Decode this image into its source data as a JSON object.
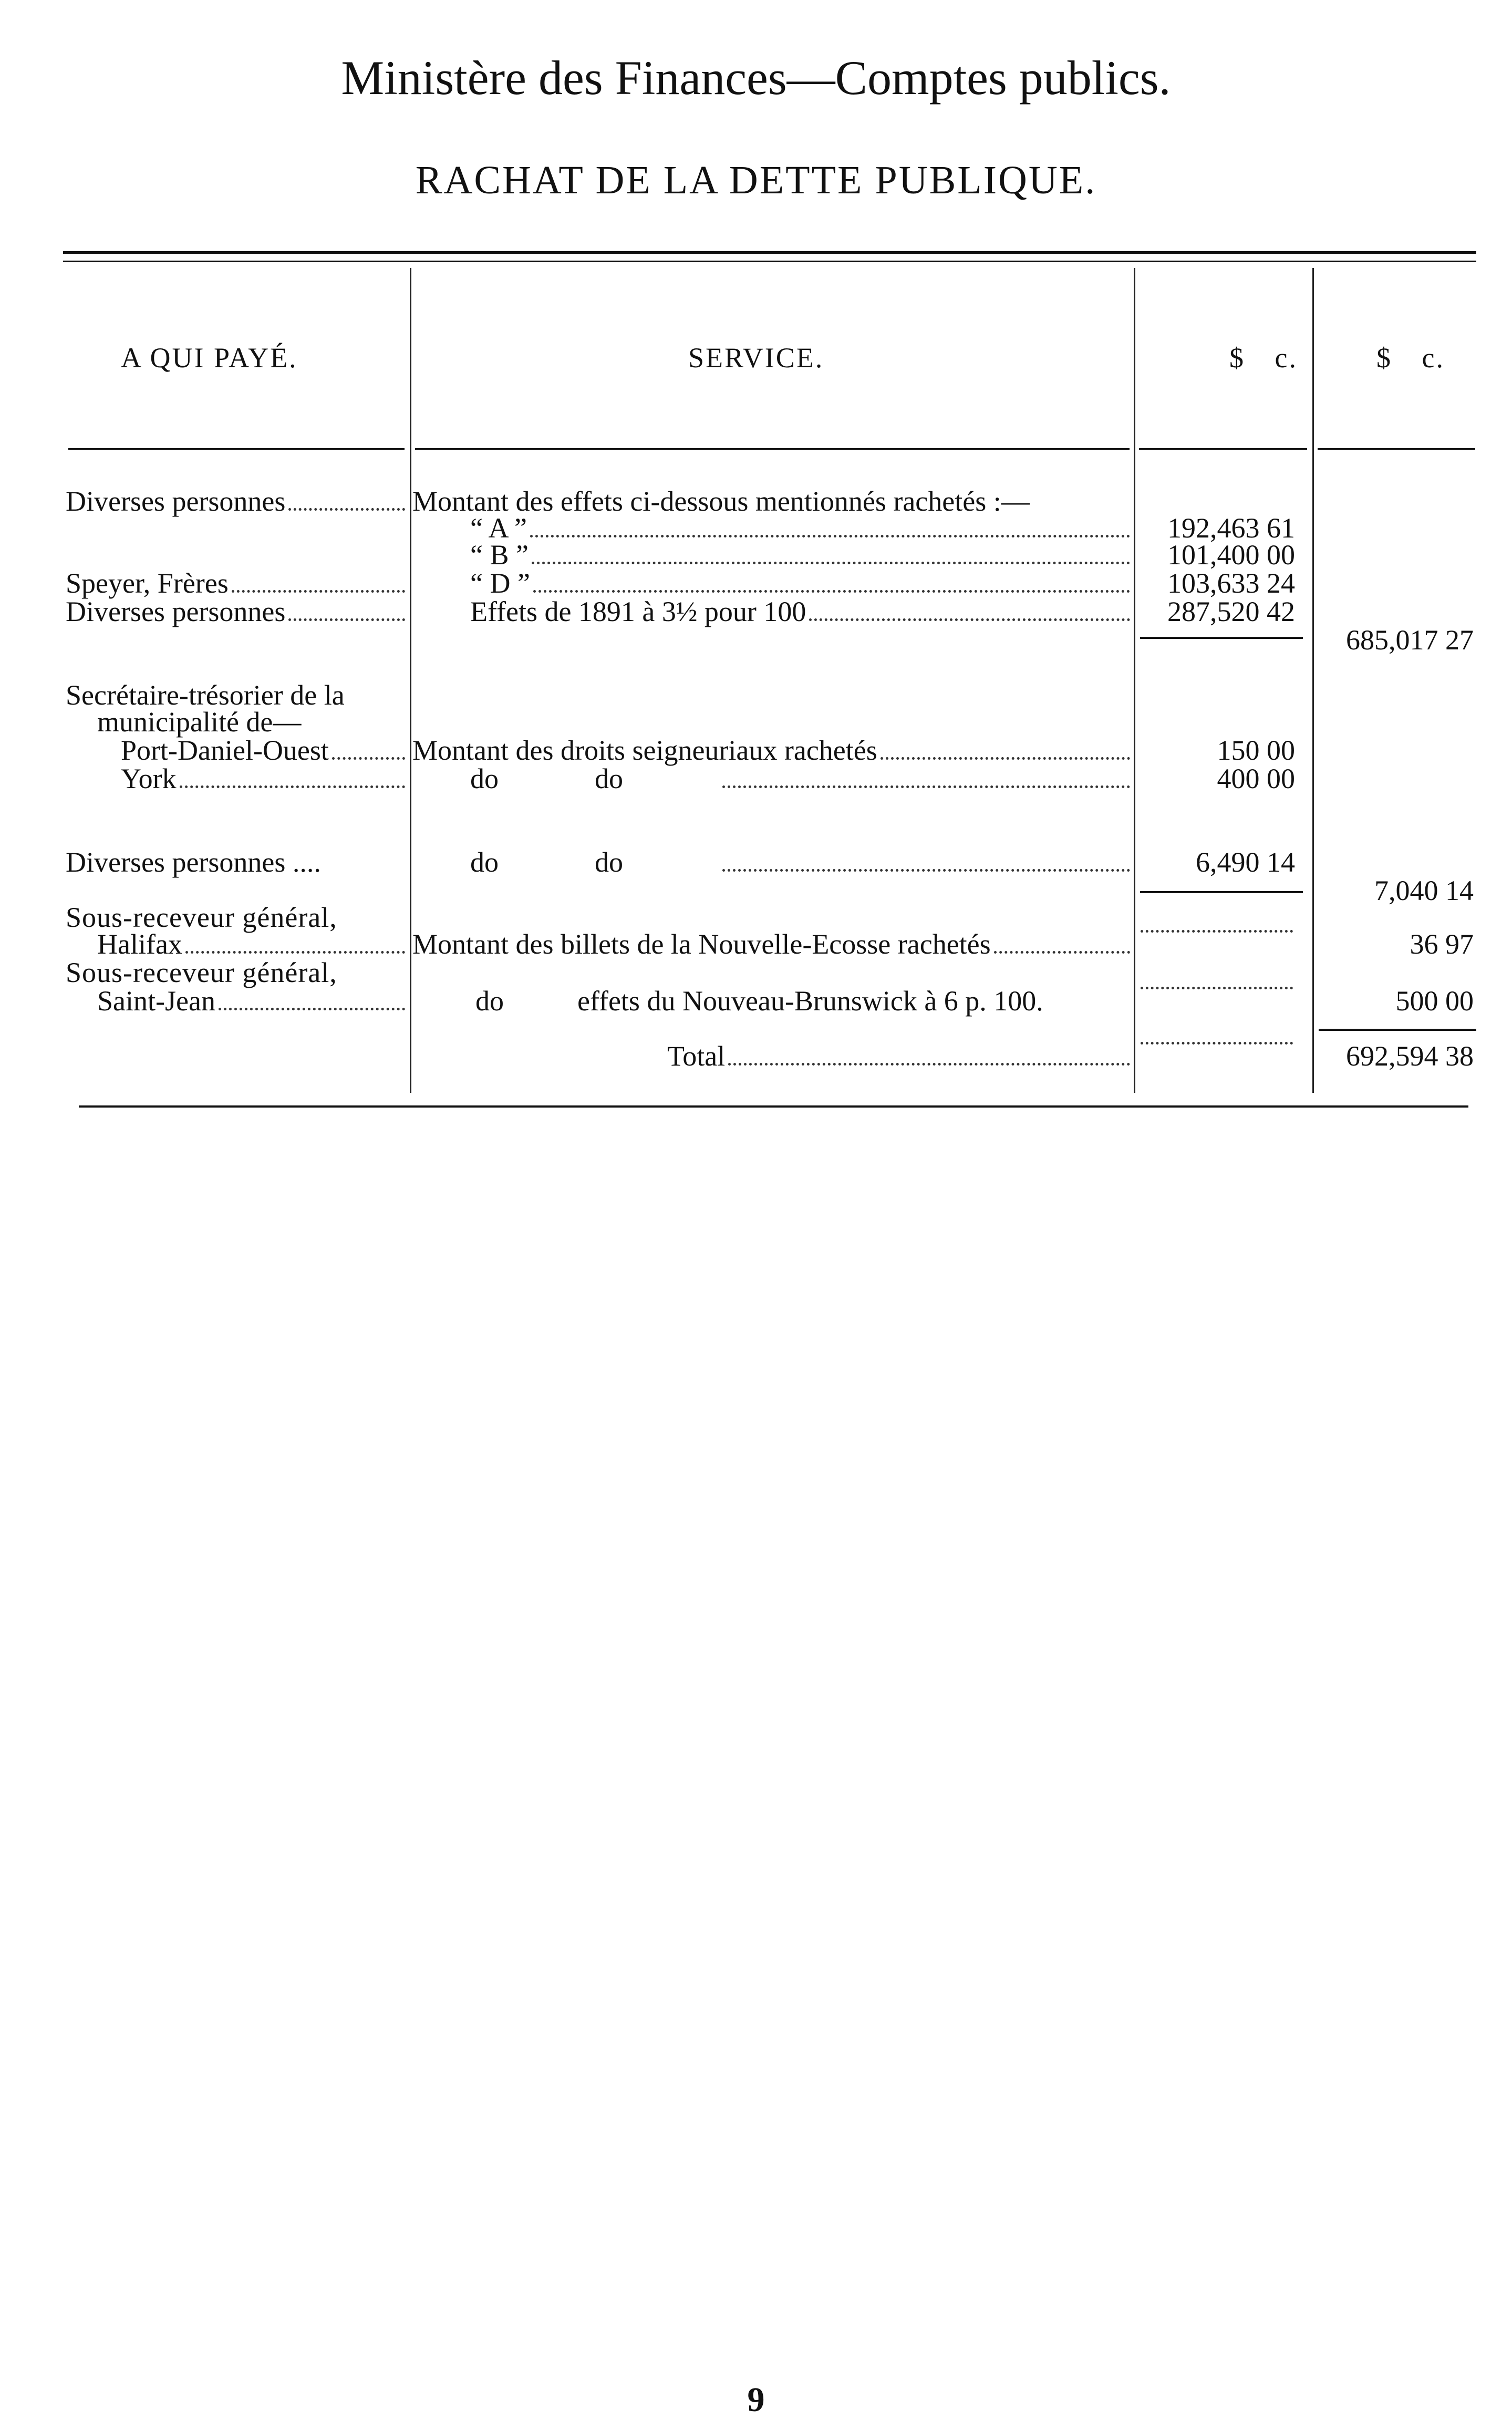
{
  "header": {
    "title": "Ministère des Finances—Comptes publics.",
    "subtitle": "RACHAT DE LA DETTE PUBLIQUE."
  },
  "table": {
    "columns": [
      "A QUI PAYÉ.",
      "SERVICE.",
      "$ c.",
      "$ c."
    ],
    "rows": [
      {
        "payee": "Diverses personnes",
        "service": "Montant des effets ci-dessous mentionnés rachetés :—"
      },
      {
        "service": "“ A ”",
        "amount": "192,463 61"
      },
      {
        "service": "“ B ”",
        "amount": "101,400 00"
      },
      {
        "payee": "Speyer, Frères",
        "service": "“ D ”",
        "amount": "103,633 24"
      },
      {
        "payee": "Diverses personnes",
        "service": "Effets de 1891 à 3½ pour 100",
        "amount": "287,520 42"
      },
      {
        "total": "685,017 27"
      },
      {
        "payee": "Secrétaire-trésorier de la"
      },
      {
        "payee": "municipalité de—"
      },
      {
        "payee": "Port-Daniel-Ouest",
        "service": "Montant des droits seigneuriaux rachetés",
        "amount": "150 00"
      },
      {
        "payee": "York",
        "service": "do",
        "service2": "do",
        "amount": "400 00"
      },
      {
        "payee": "Diverses personnes ....",
        "service": "do",
        "service2": "do",
        "amount": "6,490 14"
      },
      {
        "total": "7,040 14"
      },
      {
        "payee": "Sous-receveur général,"
      },
      {
        "payee": "Halifax",
        "service": "Montant des billets de la Nouvelle-Ecosse rachetés",
        "total": "36 97"
      },
      {
        "payee": "Sous-receveur général,"
      },
      {
        "payee": "Saint-Jean",
        "service": "do",
        "service2": "effets du Nouveau-Brunswick à 6 p. 100.",
        "total": "500 00"
      },
      {
        "service": "Total",
        "total": "692,594 38"
      }
    ]
  },
  "page_number": "9"
}
